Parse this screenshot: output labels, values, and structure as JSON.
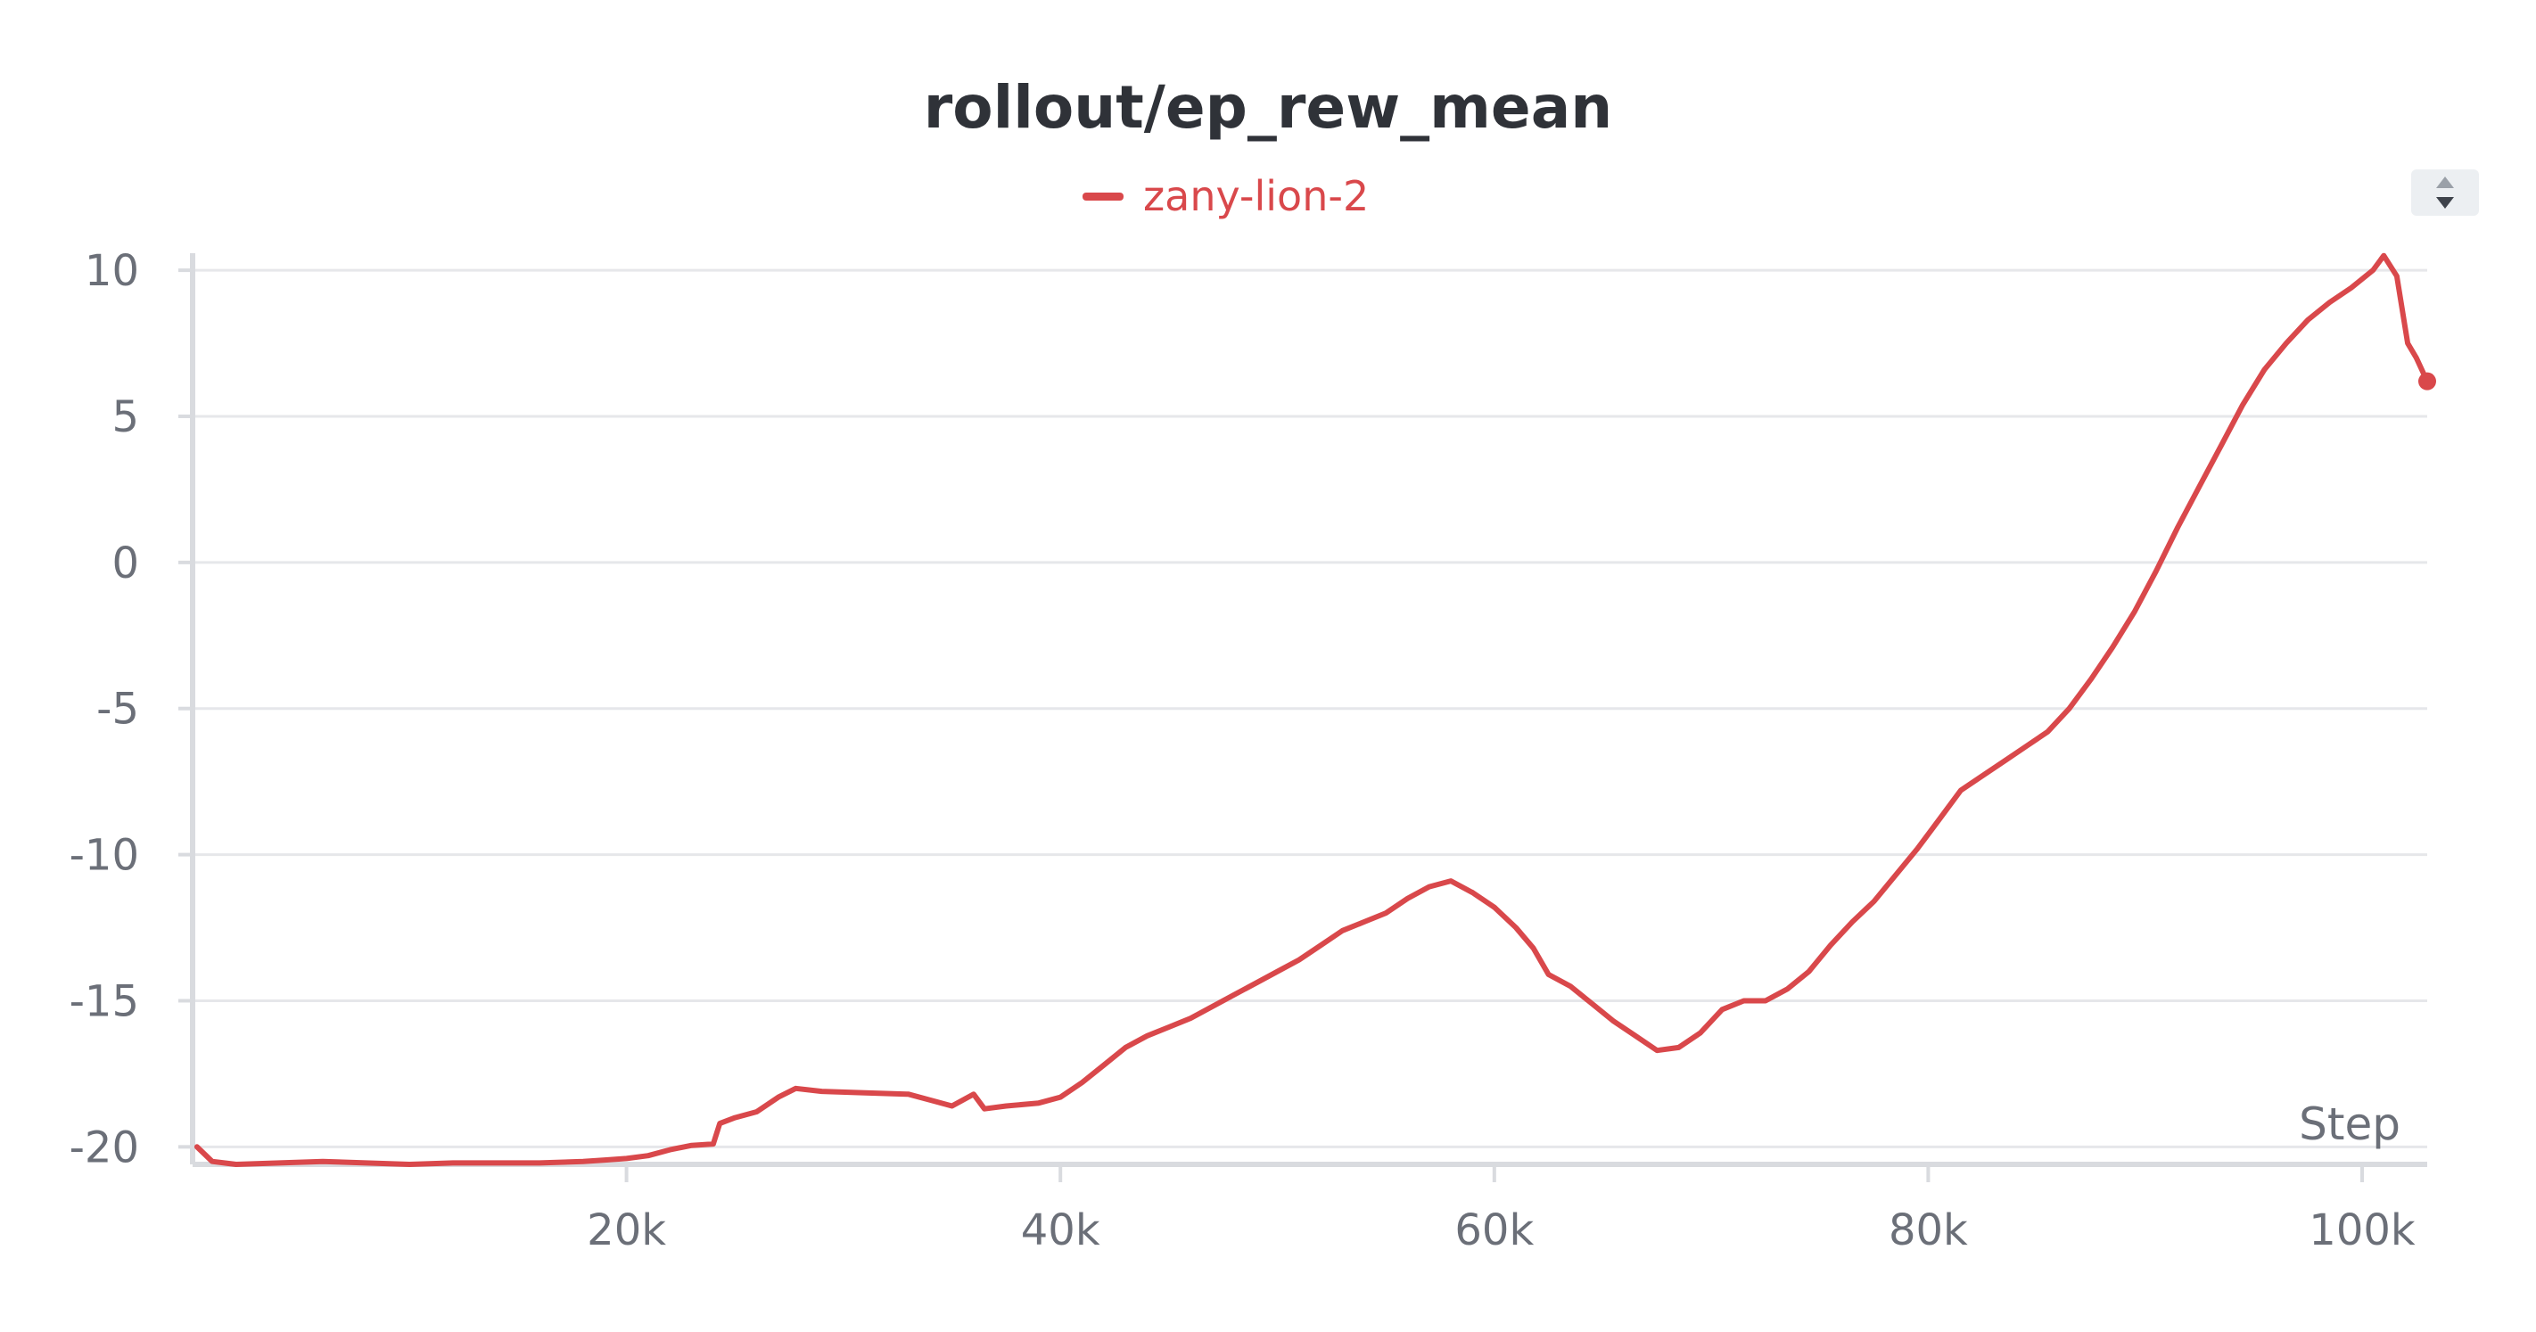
{
  "chart_data": {
    "type": "line",
    "title": "rollout/ep_rew_mean",
    "xlabel": "Step",
    "ylabel": "",
    "xlim": [
      0,
      103000
    ],
    "ylim": [
      -20.6,
      10.4
    ],
    "x_ticks": [
      20000,
      40000,
      60000,
      80000,
      100000
    ],
    "x_tick_labels": [
      "20k",
      "40k",
      "60k",
      "80k",
      "100k"
    ],
    "y_ticks": [
      10,
      5,
      0,
      -5,
      -10,
      -15,
      -20
    ],
    "y_tick_labels": [
      "10",
      "5",
      "0",
      "-5",
      "-10",
      "-15",
      "-20"
    ],
    "grid": true,
    "legend": "top-center",
    "series": [
      {
        "name": "zany-lion-2",
        "color": "#d9484b",
        "x": [
          200,
          900,
          2000,
          4000,
          6000,
          8000,
          10000,
          12000,
          14000,
          16000,
          18000,
          19000,
          20000,
          21000,
          22000,
          23000,
          24000,
          24300,
          25000,
          26000,
          27000,
          27800,
          29000,
          31000,
          33000,
          34000,
          35000,
          36000,
          36500,
          37500,
          39000,
          40000,
          41000,
          42000,
          43000,
          44000,
          45000,
          46000,
          47000,
          48000,
          49000,
          50000,
          51000,
          52000,
          53000,
          54000,
          55000,
          56000,
          57000,
          58000,
          59000,
          60000,
          61000,
          61800,
          62500,
          63500,
          64500,
          65500,
          66500,
          67500,
          68500,
          69500,
          70500,
          71500,
          72500,
          73500,
          74500,
          75500,
          76500,
          77500,
          78500,
          79500,
          80500,
          81500,
          82500,
          83500,
          84500,
          85500,
          86500,
          87500,
          88500,
          89500,
          90500,
          91500,
          92500,
          93500,
          94500,
          95500,
          96500,
          97500,
          98500,
          99500,
          100500,
          101000,
          101600,
          102100,
          102500,
          103000
        ],
        "values": [
          -20.0,
          -20.5,
          -20.6,
          -20.55,
          -20.5,
          -20.55,
          -20.6,
          -20.55,
          -20.55,
          -20.55,
          -20.5,
          -20.45,
          -20.4,
          -20.3,
          -20.1,
          -19.95,
          -19.9,
          -19.2,
          -19.0,
          -18.8,
          -18.3,
          -18.0,
          -18.1,
          -18.15,
          -18.2,
          -18.4,
          -18.6,
          -18.2,
          -18.7,
          -18.6,
          -18.5,
          -18.3,
          -17.8,
          -17.2,
          -16.6,
          -16.2,
          -15.9,
          -15.6,
          -15.2,
          -14.8,
          -14.4,
          -14.0,
          -13.6,
          -13.1,
          -12.6,
          -12.3,
          -12.0,
          -11.5,
          -11.1,
          -10.9,
          -11.3,
          -11.8,
          -12.5,
          -13.2,
          -14.1,
          -14.5,
          -15.1,
          -15.7,
          -16.2,
          -16.7,
          -16.6,
          -16.1,
          -15.3,
          -15.0,
          -15.0,
          -14.6,
          -14.0,
          -13.1,
          -12.3,
          -11.6,
          -10.7,
          -9.8,
          -8.8,
          -7.8,
          -7.3,
          -6.8,
          -6.3,
          -5.8,
          -5.0,
          -4.0,
          -2.9,
          -1.7,
          -0.3,
          1.2,
          2.6,
          4.0,
          5.4,
          6.6,
          7.5,
          8.3,
          8.9,
          9.4,
          10.0,
          10.5,
          9.8,
          7.5,
          7.0,
          6.2
        ]
      }
    ]
  },
  "controls": {
    "scroll_icon": "sort-up-down-icon"
  }
}
